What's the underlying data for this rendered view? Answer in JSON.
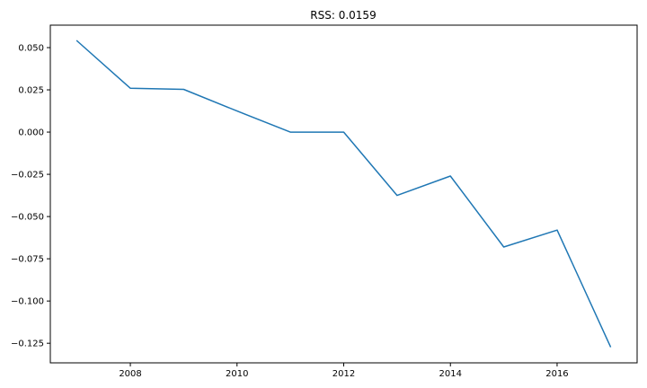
{
  "chart_data": {
    "type": "line",
    "title": "RSS: 0.0159",
    "xlabel": "",
    "ylabel": "",
    "xlim": [
      2006.5,
      2017.5
    ],
    "ylim": [
      -0.1366,
      0.0633
    ],
    "x_ticks": [
      2008,
      2010,
      2012,
      2014,
      2016
    ],
    "x_tick_labels": [
      "2008",
      "2010",
      "2012",
      "2014",
      "2016"
    ],
    "y_ticks": [
      0.05,
      0.025,
      0.0,
      -0.025,
      -0.05,
      -0.075,
      -0.1,
      -0.125
    ],
    "y_tick_labels": [
      "0.050",
      "0.025",
      "0.000",
      "−0.025",
      "−0.050",
      "−0.075",
      "−0.100",
      "−0.125"
    ],
    "grid": false,
    "series": [
      {
        "color": "#1f77b4",
        "x": [
          2007,
          2008,
          2009,
          2010,
          2011,
          2012,
          2013,
          2014,
          2015,
          2016,
          2017
        ],
        "y": [
          0.054,
          0.026,
          0.0253,
          0.0125,
          0.0,
          0.0,
          -0.0375,
          -0.026,
          -0.068,
          -0.058,
          -0.127
        ]
      }
    ]
  }
}
